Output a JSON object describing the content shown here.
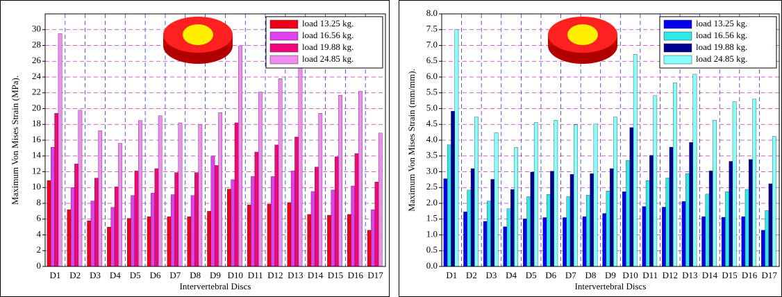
{
  "chart_data": [
    {
      "type": "bar",
      "ylabel": "Maximum Von Mises Strain (MPa).",
      "xlabel": "Intervertebral Discs",
      "categories": [
        "D1",
        "D2",
        "D3",
        "D4",
        "D5",
        "D6",
        "D7",
        "D8",
        "D9",
        "D10",
        "D11",
        "D12",
        "D13",
        "D14",
        "D15",
        "D16",
        "D17"
      ],
      "series": [
        {
          "name": "load 13.25 kg.",
          "color": "#f00018",
          "values": [
            10.9,
            7.2,
            5.8,
            5.0,
            6.1,
            6.3,
            6.3,
            6.3,
            7.0,
            9.8,
            7.8,
            7.9,
            8.1,
            6.6,
            6.5,
            6.6,
            4.6
          ]
        },
        {
          "name": "load 16.56 kg.",
          "color": "#e040f0",
          "values": [
            15.1,
            10.0,
            8.3,
            7.5,
            9.0,
            9.3,
            9.1,
            9.0,
            14.0,
            11.0,
            11.4,
            11.4,
            12.1,
            9.5,
            9.7,
            10.2,
            7.2
          ]
        },
        {
          "name": "load 19.88 kg.",
          "color": "#f00878",
          "values": [
            19.4,
            13.0,
            11.2,
            10.1,
            12.1,
            12.4,
            11.9,
            11.9,
            12.8,
            18.2,
            14.5,
            15.4,
            16.4,
            12.6,
            13.9,
            14.3,
            10.7
          ]
        },
        {
          "name": "load 24.85 kg.",
          "color": "#f08cf0",
          "values": [
            29.5,
            19.8,
            17.2,
            15.6,
            18.5,
            19.1,
            18.2,
            18.0,
            19.5,
            27.9,
            22.1,
            23.8,
            25.4,
            19.4,
            21.7,
            22.2,
            16.9
          ]
        }
      ],
      "ylim": [
        0,
        32
      ],
      "yticks": [
        0,
        2,
        4,
        6,
        8,
        10,
        12,
        14,
        16,
        18,
        20,
        22,
        24,
        26,
        28,
        30
      ],
      "grid": true,
      "legend": "upper right"
    },
    {
      "type": "bar",
      "ylabel": "Maximum Von Mises Strain (mm/mm).",
      "xlabel": "Intervertebral Discs",
      "categories": [
        "D1",
        "D2",
        "D3",
        "D4",
        "D5",
        "D6",
        "D7",
        "D8",
        "D9",
        "D10",
        "D11",
        "D12",
        "D13",
        "D14",
        "D15",
        "D16",
        "D17"
      ],
      "series": [
        {
          "name": "load 13.25 kg.",
          "color": "#0000f0",
          "values": [
            2.78,
            1.73,
            1.43,
            1.26,
            1.51,
            1.55,
            1.55,
            1.58,
            1.68,
            2.37,
            1.9,
            1.88,
            2.06,
            1.58,
            1.56,
            1.58,
            1.15
          ]
        },
        {
          "name": "load 16.56 kg.",
          "color": "#30e8e8",
          "values": [
            3.85,
            2.42,
            2.07,
            1.83,
            2.21,
            2.28,
            2.21,
            2.26,
            2.39,
            3.36,
            2.72,
            2.8,
            2.94,
            2.29,
            2.37,
            2.44,
            1.77
          ]
        },
        {
          "name": "load 19.88 kg.",
          "color": "#000090",
          "values": [
            4.92,
            3.1,
            2.76,
            2.44,
            2.99,
            3.02,
            2.92,
            2.94,
            3.1,
            4.4,
            3.52,
            3.78,
            3.93,
            3.03,
            3.33,
            3.39,
            2.62
          ]
        },
        {
          "name": "load 24.85 kg.",
          "color": "#88ffff",
          "values": [
            7.5,
            4.73,
            4.24,
            3.77,
            4.56,
            4.63,
            4.49,
            4.51,
            4.73,
            6.72,
            5.41,
            5.82,
            6.09,
            4.63,
            5.22,
            5.3,
            4.12
          ]
        }
      ],
      "ylim": [
        0,
        8
      ],
      "yticks": [
        {
          "value": 0,
          "label": "0.0"
        },
        0.5,
        {
          "value": 1,
          "label": "1.0"
        },
        1.5,
        {
          "value": 2,
          "label": "2.0"
        },
        2.5,
        {
          "value": 3,
          "label": "3.0"
        },
        3.5,
        {
          "value": 4,
          "label": "4.0"
        },
        4.5,
        {
          "value": 5,
          "label": "5.0"
        },
        5.5,
        {
          "value": 6,
          "label": "6.0"
        },
        6.5,
        {
          "value": 7,
          "label": "7.0"
        },
        7.5,
        {
          "value": 8,
          "label": "8.0"
        }
      ],
      "grid": true,
      "legend": "upper right"
    }
  ]
}
